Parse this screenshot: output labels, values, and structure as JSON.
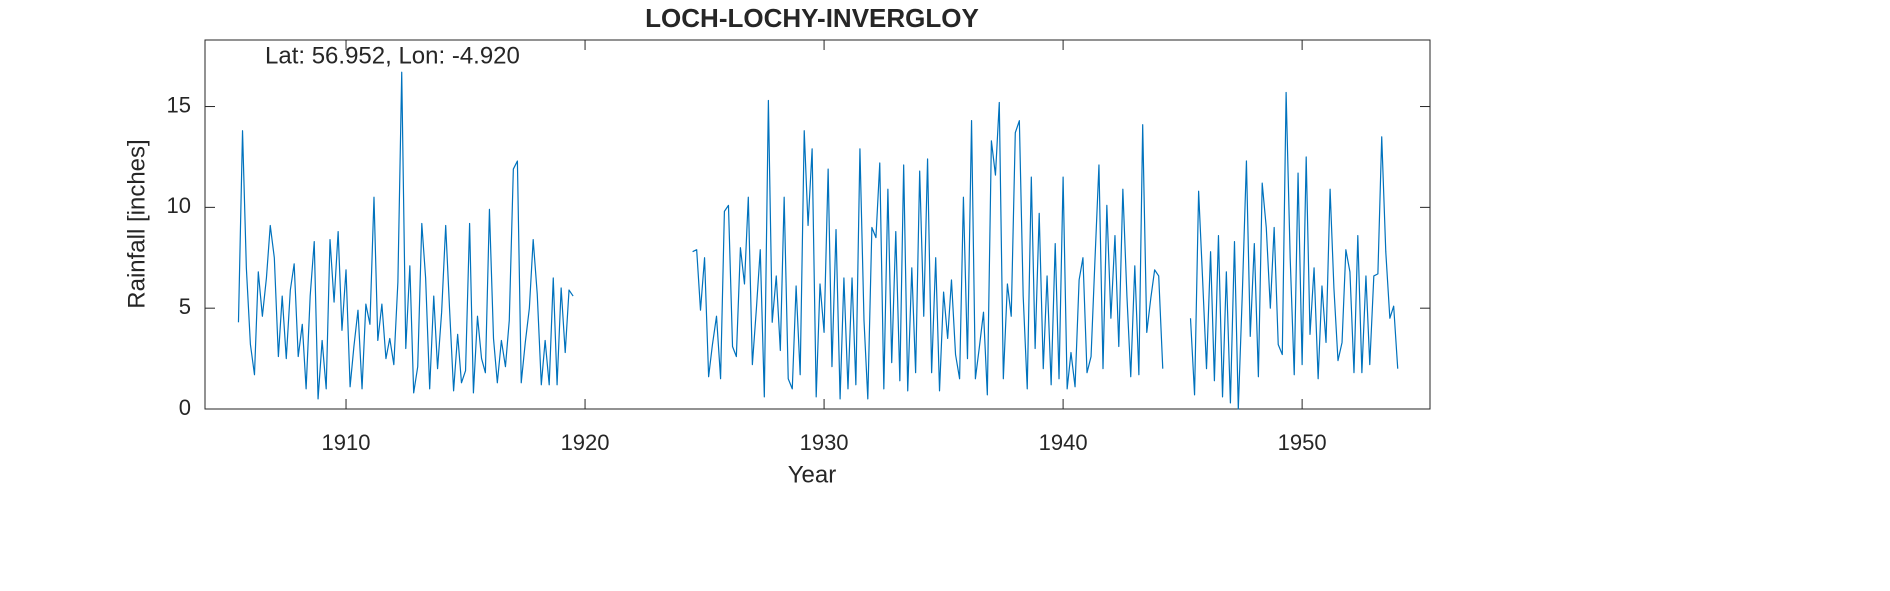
{
  "chart_data": {
    "type": "line",
    "title": "LOCH-LOCHY-INVERGLOY",
    "annotation": "Lat: 56.952, Lon: -4.920",
    "x_label": "Year",
    "y_label": "Rainfall [inches]",
    "color": "#0072BD",
    "xlim": [
      1904.1,
      1955.35
    ],
    "ylim": [
      0,
      18.3
    ],
    "xticks": [
      1910,
      1920,
      1930,
      1940,
      1950
    ],
    "yticks": [
      0,
      5,
      10,
      15
    ],
    "x": [
      1905.5,
      1905.67,
      1905.83,
      1906,
      1906.17,
      1906.33,
      1906.5,
      1906.67,
      1906.83,
      1907,
      1907.17,
      1907.33,
      1907.5,
      1907.67,
      1907.83,
      1908,
      1908.17,
      1908.33,
      1908.5,
      1908.67,
      1908.83,
      1909,
      1909.17,
      1909.33,
      1909.5,
      1909.67,
      1909.83,
      1910,
      1910.17,
      1910.33,
      1910.5,
      1910.67,
      1910.83,
      1911,
      1911.17,
      1911.33,
      1911.5,
      1911.67,
      1911.83,
      1912,
      1912.17,
      1912.33,
      1912.5,
      1912.67,
      1912.83,
      1913,
      1913.17,
      1913.33,
      1913.5,
      1913.67,
      1913.83,
      1914,
      1914.17,
      1914.33,
      1914.5,
      1914.67,
      1914.83,
      1915,
      1915.17,
      1915.33,
      1915.5,
      1915.67,
      1915.83,
      1916,
      1916.17,
      1916.33,
      1916.5,
      1916.67,
      1916.83,
      1917,
      1917.17,
      1917.33,
      1917.5,
      1917.67,
      1917.83,
      1918,
      1918.17,
      1918.33,
      1918.5,
      1918.67,
      1918.83,
      1919,
      1919.17,
      1919.33,
      1919.5,
      1922,
      1924.5,
      1924.67,
      1924.83,
      1925,
      1925.17,
      1925.33,
      1925.5,
      1925.67,
      1925.83,
      1926,
      1926.17,
      1926.33,
      1926.5,
      1926.67,
      1926.83,
      1927,
      1927.17,
      1927.33,
      1927.5,
      1927.67,
      1927.83,
      1928,
      1928.17,
      1928.33,
      1928.5,
      1928.67,
      1928.83,
      1929,
      1929.17,
      1929.33,
      1929.5,
      1929.67,
      1929.83,
      1930,
      1930.17,
      1930.33,
      1930.5,
      1930.67,
      1930.83,
      1931,
      1931.17,
      1931.33,
      1931.5,
      1931.67,
      1931.83,
      1932,
      1932.17,
      1932.33,
      1932.5,
      1932.67,
      1932.83,
      1933,
      1933.17,
      1933.33,
      1933.5,
      1933.67,
      1933.83,
      1934,
      1934.17,
      1934.33,
      1934.5,
      1934.67,
      1934.83,
      1935,
      1935.17,
      1935.33,
      1935.5,
      1935.67,
      1935.83,
      1936,
      1936.17,
      1936.33,
      1936.5,
      1936.67,
      1936.83,
      1937,
      1937.17,
      1937.33,
      1937.5,
      1937.67,
      1937.83,
      1938,
      1938.17,
      1938.33,
      1938.5,
      1938.67,
      1938.83,
      1939,
      1939.17,
      1939.33,
      1939.5,
      1939.67,
      1939.83,
      1940,
      1940.17,
      1940.33,
      1940.5,
      1940.67,
      1940.83,
      1941,
      1941.17,
      1941.33,
      1941.5,
      1941.67,
      1941.83,
      1942,
      1942.17,
      1942.33,
      1942.5,
      1942.67,
      1942.83,
      1943,
      1943.17,
      1943.33,
      1943.5,
      1943.67,
      1943.83,
      1944,
      1944.17,
      1944.67,
      1945.33,
      1945.5,
      1945.67,
      1945.83,
      1946,
      1946.17,
      1946.33,
      1946.5,
      1946.67,
      1946.83,
      1947,
      1947.17,
      1947.33,
      1947.5,
      1947.67,
      1947.83,
      1948,
      1948.17,
      1948.33,
      1948.5,
      1948.67,
      1948.83,
      1949,
      1949.17,
      1949.33,
      1949.5,
      1949.67,
      1949.83,
      1950,
      1950.17,
      1950.33,
      1950.5,
      1950.67,
      1950.83,
      1951,
      1951.17,
      1951.33,
      1951.5,
      1951.67,
      1951.83,
      1952,
      1952.17,
      1952.33,
      1952.5,
      1952.67,
      1952.83,
      1953,
      1953.17,
      1953.33,
      1953.5,
      1953.67,
      1953.83,
      1954
    ],
    "values": [
      4.3,
      13.8,
      7.0,
      3.2,
      1.7,
      6.8,
      4.6,
      6.5,
      9.1,
      7.5,
      2.6,
      5.6,
      2.5,
      5.9,
      7.2,
      2.6,
      4.2,
      1.0,
      5.6,
      8.3,
      0.5,
      3.4,
      1.0,
      8.4,
      5.3,
      8.8,
      3.9,
      6.9,
      1.1,
      3.1,
      4.9,
      1.0,
      5.2,
      4.2,
      10.5,
      3.4,
      5.2,
      2.5,
      3.5,
      2.2,
      6.3,
      16.7,
      3.0,
      7.1,
      0.8,
      2.1,
      9.2,
      6.5,
      1.0,
      5.6,
      2.0,
      4.8,
      9.1,
      5.0,
      0.9,
      3.7,
      1.3,
      1.9,
      9.2,
      0.8,
      4.6,
      2.5,
      1.8,
      9.9,
      3.5,
      1.3,
      3.4,
      2.1,
      4.4,
      11.9,
      12.3,
      1.3,
      3.3,
      5.0,
      8.4,
      5.7,
      1.2,
      3.4,
      1.2,
      6.5,
      1.2,
      6.0,
      2.8,
      5.9,
      5.6,
      null,
      7.8,
      7.9,
      4.9,
      7.5,
      1.6,
      3.2,
      4.6,
      1.5,
      9.8,
      10.1,
      3.1,
      2.6,
      8.0,
      6.2,
      10.5,
      2.2,
      5.0,
      7.9,
      0.6,
      15.3,
      4.3,
      6.6,
      2.9,
      10.5,
      1.5,
      1.0,
      6.1,
      1.7,
      13.8,
      9.1,
      12.9,
      0.6,
      6.2,
      3.8,
      11.9,
      2.1,
      8.9,
      0.5,
      6.5,
      1.0,
      6.5,
      1.2,
      12.9,
      4.4,
      0.5,
      9.0,
      8.5,
      12.2,
      1.0,
      10.9,
      2.3,
      8.8,
      1.4,
      12.1,
      0.9,
      7.0,
      1.8,
      11.8,
      4.6,
      12.4,
      1.8,
      7.5,
      0.9,
      5.8,
      3.5,
      6.4,
      2.7,
      1.5,
      10.5,
      2.5,
      14.3,
      1.5,
      3.1,
      4.8,
      0.7,
      13.3,
      11.6,
      15.2,
      1.5,
      6.2,
      4.6,
      13.7,
      14.3,
      5.6,
      1.0,
      11.5,
      3.0,
      9.7,
      2.0,
      6.6,
      1.2,
      8.2,
      1.5,
      11.5,
      1.0,
      2.8,
      1.1,
      6.4,
      7.5,
      1.8,
      2.6,
      7.3,
      12.1,
      2.0,
      10.1,
      4.5,
      8.6,
      3.1,
      10.9,
      5.6,
      1.6,
      7.1,
      1.7,
      14.1,
      3.8,
      5.5,
      6.9,
      6.6,
      2.0,
      null,
      4.5,
      0.7,
      10.8,
      6.6,
      2.0,
      7.8,
      1.4,
      8.6,
      0.6,
      6.8,
      0.3,
      8.3,
      0.0,
      5.8,
      12.3,
      3.6,
      8.2,
      1.6,
      11.2,
      9.0,
      5.0,
      9.0,
      3.2,
      2.7,
      15.7,
      7.5,
      1.7,
      11.7,
      2.2,
      12.5,
      3.7,
      7.0,
      1.5,
      6.1,
      3.3,
      10.9,
      6.0,
      2.4,
      3.3,
      7.9,
      6.8,
      1.8,
      8.6,
      1.8,
      6.6,
      2.2,
      6.6,
      6.7,
      13.5,
      7.8,
      4.5,
      5.1,
      2.0
    ]
  }
}
